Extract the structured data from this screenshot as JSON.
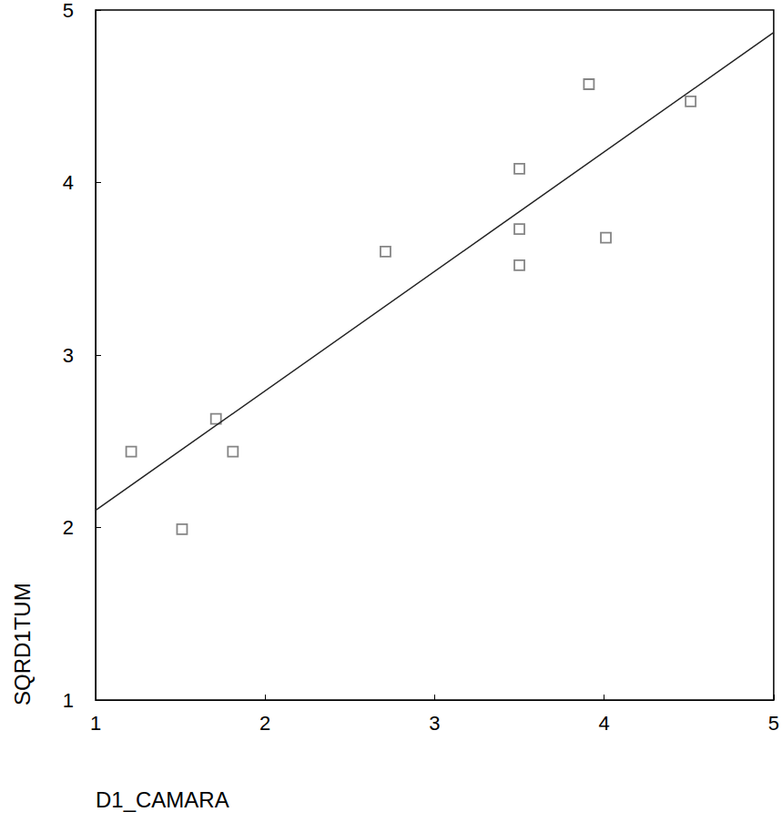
{
  "chart_data": {
    "type": "scatter",
    "x_label": "D1_CAMARA",
    "y_label": "SQRD1TUM",
    "x": [
      1.21,
      1.51,
      1.71,
      1.81,
      2.71,
      3.5,
      3.5,
      3.5,
      3.91,
      4.01,
      4.51
    ],
    "values": [
      2.44,
      1.99,
      2.63,
      2.44,
      3.6,
      4.08,
      3.73,
      3.52,
      4.57,
      3.68,
      4.47
    ],
    "color": "#666666",
    "marker": "square",
    "fit_line": {
      "x": [
        1,
        5
      ],
      "values": [
        2.1,
        4.87
      ],
      "color": "#222222",
      "line_style": "solid"
    },
    "xlim": [
      1,
      5
    ],
    "xticks": [
      1,
      2,
      3,
      4,
      5
    ],
    "ylim": [
      1,
      5
    ],
    "yticks": [
      1,
      2,
      3,
      4,
      5
    ],
    "grid": false
  }
}
